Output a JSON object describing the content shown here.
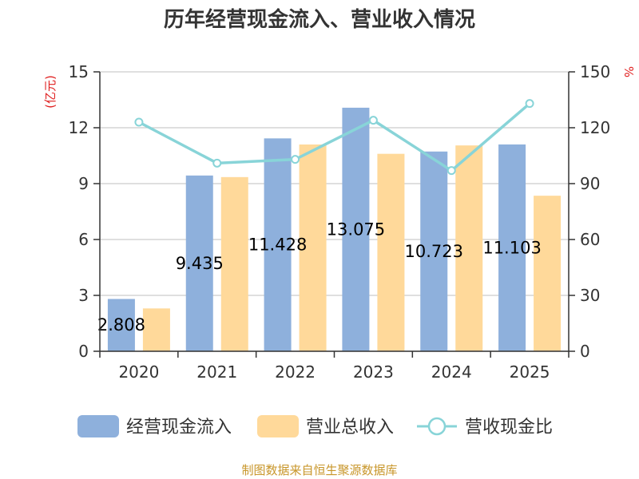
{
  "chart_data": {
    "type": "bar",
    "title": "历年经营现金流入、营业收入情况",
    "categories": [
      "2020",
      "2021",
      "2022",
      "2023",
      "2024",
      "2025"
    ],
    "series": [
      {
        "name": "经营现金流入",
        "values": [
          2.808,
          9.435,
          11.428,
          13.075,
          10.723,
          11.103
        ],
        "color": "#8eb0dc",
        "labels": [
          "2.808",
          "9.435",
          "11.428",
          "13.075",
          "10.723",
          "11.103"
        ]
      },
      {
        "name": "营业总收入",
        "values": [
          2.3,
          9.35,
          11.1,
          10.6,
          11.05,
          8.35
        ],
        "color": "#ffd99a"
      },
      {
        "name": "营收现金比",
        "type": "line",
        "axis": "right",
        "values": [
          123,
          101,
          103,
          124,
          97,
          133
        ],
        "color": "#88d4d8"
      }
    ],
    "y_left": {
      "label": "(亿元)",
      "range": [
        0,
        15
      ],
      "ticks": [
        "0",
        "3",
        "6",
        "9",
        "12",
        "15"
      ]
    },
    "y_right": {
      "label": "%",
      "range": [
        0,
        150
      ],
      "ticks": [
        "0",
        "30",
        "60",
        "90",
        "120",
        "150"
      ]
    },
    "grid": true,
    "legend": "bottom"
  },
  "footer": {
    "source": "制图数据来自恒生聚源数据库"
  }
}
